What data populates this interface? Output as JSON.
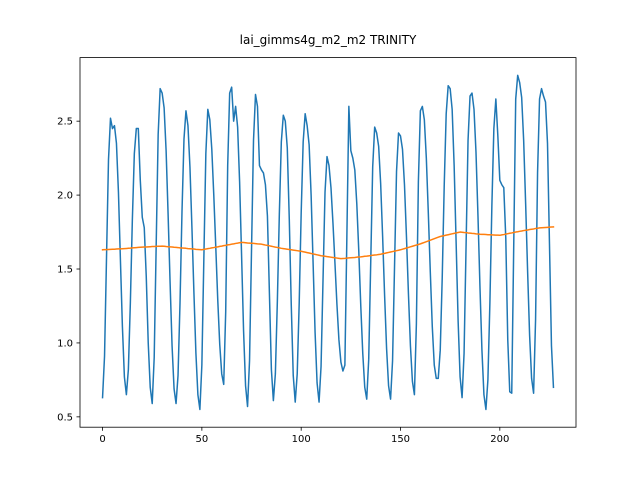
{
  "chart_data": {
    "type": "line",
    "title": "lai_gimms4g_m2_m2 TRINITY",
    "x": [
      0,
      1,
      2,
      3,
      4,
      5,
      6,
      7,
      8,
      9,
      10,
      11,
      12,
      13,
      14,
      15,
      16,
      17,
      18,
      19,
      20,
      21,
      22,
      23,
      24,
      25,
      26,
      27,
      28,
      29,
      30,
      31,
      32,
      33,
      34,
      35,
      36,
      37,
      38,
      39,
      40,
      41,
      42,
      43,
      44,
      45,
      46,
      47,
      48,
      49,
      50,
      51,
      52,
      53,
      54,
      55,
      56,
      57,
      58,
      59,
      60,
      61,
      62,
      63,
      64,
      65,
      66,
      67,
      68,
      69,
      70,
      71,
      72,
      73,
      74,
      75,
      76,
      77,
      78,
      79,
      80,
      81,
      82,
      83,
      84,
      85,
      86,
      87,
      88,
      89,
      90,
      91,
      92,
      93,
      94,
      95,
      96,
      97,
      98,
      99,
      100,
      101,
      102,
      103,
      104,
      105,
      106,
      107,
      108,
      109,
      110,
      111,
      112,
      113,
      114,
      115,
      116,
      117,
      118,
      119,
      120,
      121,
      122,
      123,
      124,
      125,
      126,
      127,
      128,
      129,
      130,
      131,
      132,
      133,
      134,
      135,
      136,
      137,
      138,
      139,
      140,
      141,
      142,
      143,
      144,
      145,
      146,
      147,
      148,
      149,
      150,
      151,
      152,
      153,
      154,
      155,
      156,
      157,
      158,
      159,
      160,
      161,
      162,
      163,
      164,
      165,
      166,
      167,
      168,
      169,
      170,
      171,
      172,
      173,
      174,
      175,
      176,
      177,
      178,
      179,
      180,
      181,
      182,
      183,
      184,
      185,
      186,
      187,
      188,
      189,
      190,
      191,
      192,
      193,
      194,
      195,
      196,
      197,
      198,
      199,
      200,
      201,
      202,
      203,
      204,
      205,
      206,
      207,
      208,
      209,
      210,
      211,
      212,
      213,
      214,
      215,
      216,
      217,
      218,
      219,
      220,
      221,
      222,
      223,
      224,
      225,
      226,
      227
    ],
    "series": [
      {
        "color": "#1f77b4",
        "values": [
          0.63,
          0.91,
          1.58,
          2.24,
          2.52,
          2.45,
          2.47,
          2.35,
          2.02,
          1.56,
          1.11,
          0.77,
          0.65,
          0.82,
          1.27,
          1.83,
          2.28,
          2.45,
          2.45,
          2.1,
          1.85,
          1.78,
          1.45,
          1.0,
          0.7,
          0.59,
          0.9,
          1.66,
          2.41,
          2.72,
          2.69,
          2.59,
          2.3,
          1.87,
          1.41,
          0.98,
          0.69,
          0.59,
          0.78,
          1.27,
          1.89,
          2.38,
          2.57,
          2.47,
          2.19,
          1.78,
          1.34,
          0.93,
          0.65,
          0.55,
          0.85,
          1.57,
          2.28,
          2.58,
          2.51,
          2.31,
          2.0,
          1.65,
          1.29,
          0.99,
          0.79,
          0.72,
          1.21,
          2.2,
          2.69,
          2.73,
          2.5,
          2.6,
          2.46,
          2.09,
          1.59,
          1.08,
          0.71,
          0.57,
          0.88,
          1.63,
          2.37,
          2.68,
          2.6,
          2.2,
          2.17,
          2.15,
          2.07,
          1.86,
          1.34,
          0.82,
          0.61,
          0.79,
          1.28,
          1.87,
          2.36,
          2.54,
          2.5,
          2.32,
          1.84,
          1.26,
          0.78,
          0.6,
          0.79,
          1.27,
          1.88,
          2.36,
          2.55,
          2.47,
          2.34,
          2.0,
          1.54,
          1.07,
          0.73,
          0.6,
          0.84,
          1.43,
          2.02,
          2.26,
          2.2,
          2.05,
          1.81,
          1.54,
          1.26,
          1.02,
          0.87,
          0.81,
          0.85,
          1.72,
          2.6,
          2.3,
          2.25,
          2.17,
          1.94,
          1.62,
          1.25,
          0.93,
          0.7,
          0.62,
          0.89,
          1.54,
          2.19,
          2.46,
          2.42,
          2.33,
          2.08,
          1.72,
          1.32,
          0.96,
          0.71,
          0.62,
          0.88,
          1.52,
          2.16,
          2.42,
          2.4,
          2.31,
          2.07,
          1.72,
          1.33,
          0.98,
          0.74,
          0.65,
          1.13,
          2.09,
          2.57,
          2.6,
          2.51,
          2.25,
          1.88,
          1.48,
          1.11,
          0.85,
          0.76,
          0.76,
          0.95,
          1.44,
          2.06,
          2.55,
          2.74,
          2.72,
          2.58,
          2.2,
          1.68,
          1.15,
          0.77,
          0.63,
          0.93,
          1.65,
          2.37,
          2.67,
          2.69,
          2.58,
          2.29,
          1.86,
          1.38,
          0.95,
          0.65,
          0.55,
          0.75,
          1.27,
          1.93,
          2.45,
          2.65,
          2.4,
          2.1,
          2.07,
          2.05,
          1.71,
          1.02,
          0.67,
          0.66,
          1.66,
          2.65,
          2.81,
          2.76,
          2.66,
          2.37,
          1.94,
          1.48,
          1.05,
          0.76,
          0.66,
          1.16,
          2.15,
          2.65,
          2.72,
          2.67,
          2.63,
          2.35,
          1.67,
          0.98,
          0.7
        ]
      },
      {
        "color": "#ff7f0e",
        "values": [
          1.63,
          1.631,
          1.631,
          1.632,
          1.633,
          1.634,
          1.634,
          1.635,
          1.636,
          1.636,
          1.637,
          1.638,
          1.639,
          1.64,
          1.641,
          1.643,
          1.644,
          1.645,
          1.646,
          1.647,
          1.648,
          1.649,
          1.649,
          1.65,
          1.651,
          1.652,
          1.652,
          1.653,
          1.654,
          1.654,
          1.655,
          1.654,
          1.652,
          1.651,
          1.65,
          1.649,
          1.647,
          1.646,
          1.645,
          1.643,
          1.642,
          1.641,
          1.64,
          1.638,
          1.637,
          1.636,
          1.635,
          1.633,
          1.632,
          1.631,
          1.63,
          1.633,
          1.635,
          1.638,
          1.64,
          1.643,
          1.645,
          1.648,
          1.65,
          1.653,
          1.655,
          1.658,
          1.66,
          1.663,
          1.665,
          1.668,
          1.67,
          1.673,
          1.675,
          1.678,
          1.68,
          1.679,
          1.678,
          1.676,
          1.675,
          1.674,
          1.673,
          1.672,
          1.67,
          1.669,
          1.668,
          1.665,
          1.662,
          1.66,
          1.657,
          1.654,
          1.651,
          1.648,
          1.646,
          1.643,
          1.64,
          1.638,
          1.636,
          1.634,
          1.632,
          1.63,
          1.628,
          1.626,
          1.624,
          1.622,
          1.62,
          1.617,
          1.614,
          1.611,
          1.608,
          1.605,
          1.602,
          1.599,
          1.596,
          1.593,
          1.59,
          1.588,
          1.586,
          1.584,
          1.582,
          1.58,
          1.578,
          1.576,
          1.574,
          1.572,
          1.57,
          1.571,
          1.572,
          1.574,
          1.575,
          1.576,
          1.577,
          1.578,
          1.58,
          1.581,
          1.582,
          1.584,
          1.586,
          1.587,
          1.589,
          1.591,
          1.593,
          1.595,
          1.596,
          1.598,
          1.6,
          1.603,
          1.606,
          1.609,
          1.612,
          1.615,
          1.618,
          1.621,
          1.624,
          1.627,
          1.63,
          1.634,
          1.638,
          1.642,
          1.646,
          1.65,
          1.654,
          1.658,
          1.662,
          1.666,
          1.67,
          1.675,
          1.68,
          1.685,
          1.69,
          1.695,
          1.7,
          1.705,
          1.71,
          1.715,
          1.72,
          1.723,
          1.726,
          1.729,
          1.732,
          1.735,
          1.738,
          1.741,
          1.744,
          1.747,
          1.75,
          1.749,
          1.747,
          1.746,
          1.744,
          1.743,
          1.741,
          1.74,
          1.738,
          1.737,
          1.735,
          1.734,
          1.734,
          1.733,
          1.732,
          1.732,
          1.731,
          1.73,
          1.729,
          1.729,
          1.728,
          1.731,
          1.733,
          1.736,
          1.739,
          1.742,
          1.744,
          1.747,
          1.75,
          1.752,
          1.755,
          1.757,
          1.76,
          1.762,
          1.764,
          1.767,
          1.769,
          1.771,
          1.774,
          1.776,
          1.778,
          1.779,
          1.78,
          1.781,
          1.782,
          1.783,
          1.784,
          1.785
        ]
      }
    ],
    "xlim": [
      -11.35,
      238.35
    ],
    "xticks": [
      0,
      50,
      100,
      150,
      200
    ],
    "ylim": [
      0.43,
      2.93
    ],
    "yticks": [
      0.5,
      {
        "value": 1,
        "label": "1.0"
      },
      1.5,
      {
        "value": 2,
        "label": "2.0"
      },
      2.5
    ],
    "grid": false
  }
}
